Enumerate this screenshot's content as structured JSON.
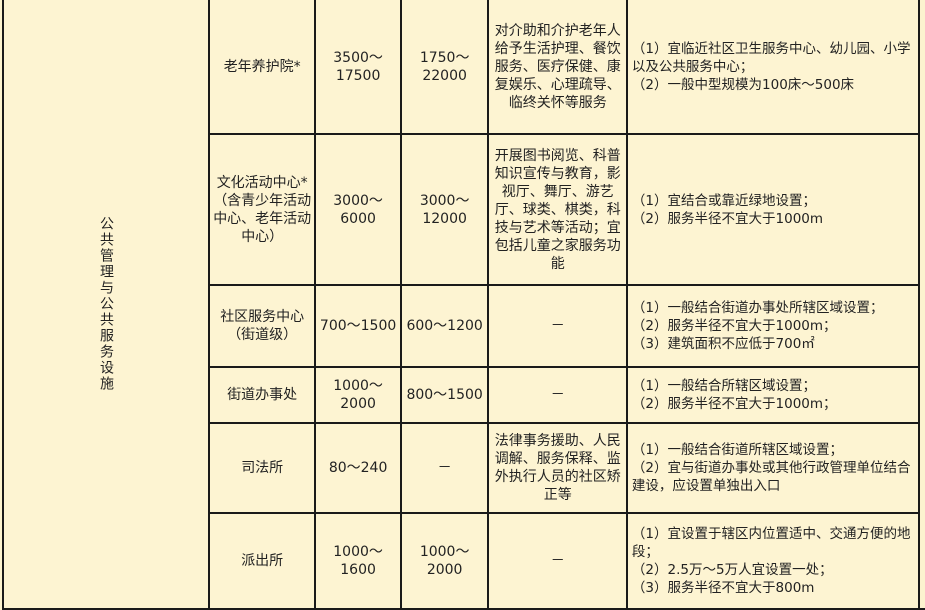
{
  "category": "公共管理与公共服务设施",
  "rows": [
    {
      "name": "老年养护院*",
      "building_area": "3500～17500",
      "land_area": "1750～22000",
      "services": "对介助和介护老年人给予生活护理、餐饮服务、医疗保健、康复娱乐、心理疏导、临终关怀等服务",
      "requirements": [
        "（1）宜临近社区卫生服务中心、幼儿园、小学以及公共服务中心；",
        "（2）一般中型规模为100床～500床"
      ]
    },
    {
      "name": "文化活动中心*（含青少年活动中心、老年活动中心）",
      "building_area": "3000～6000",
      "land_area": "3000～12000",
      "services": "开展图书阅览、科普知识宣传与教育，影视厅、舞厅、游艺厅、球类、棋类，科技与艺术等活动；宜包括儿童之家服务功能",
      "requirements": [
        "（1）宜结合或靠近绿地设置；",
        "（2）服务半径不宜大于1000m"
      ]
    },
    {
      "name": "社区服务中心（街道级）",
      "building_area": "700～1500",
      "land_area": "600～1200",
      "services": "－",
      "requirements": [
        "（1）一般结合街道办事处所辖区域设置；",
        "（2）服务半径不宜大于1000m；",
        "（3）建筑面积不应低于700㎡"
      ]
    },
    {
      "name": "街道办事处",
      "building_area": "1000～2000",
      "land_area": "800～1500",
      "services": "－",
      "requirements": [
        "（1）一般结合所辖区域设置；",
        "（2）服务半径不宜大于1000m；"
      ]
    },
    {
      "name": "司法所",
      "building_area": "80～240",
      "land_area": "－",
      "services": "法律事务援助、人民调解、服务保释、监外执行人员的社区矫正等",
      "requirements": [
        "（1）一般结合街道所辖区域设置；",
        "（2）宜与街道办事处或其他行政管理单位结合建设，应设置单独出入口"
      ]
    },
    {
      "name": "派出所",
      "building_area": "1000～1600",
      "land_area": "1000～2000",
      "services": "－",
      "requirements": [
        "（1）宜设置于辖区内位置适中、交通方便的地段；",
        "（2）2.5万～5万人宜设置一处；",
        "（3）服务半径不宜大于800m"
      ]
    }
  ]
}
